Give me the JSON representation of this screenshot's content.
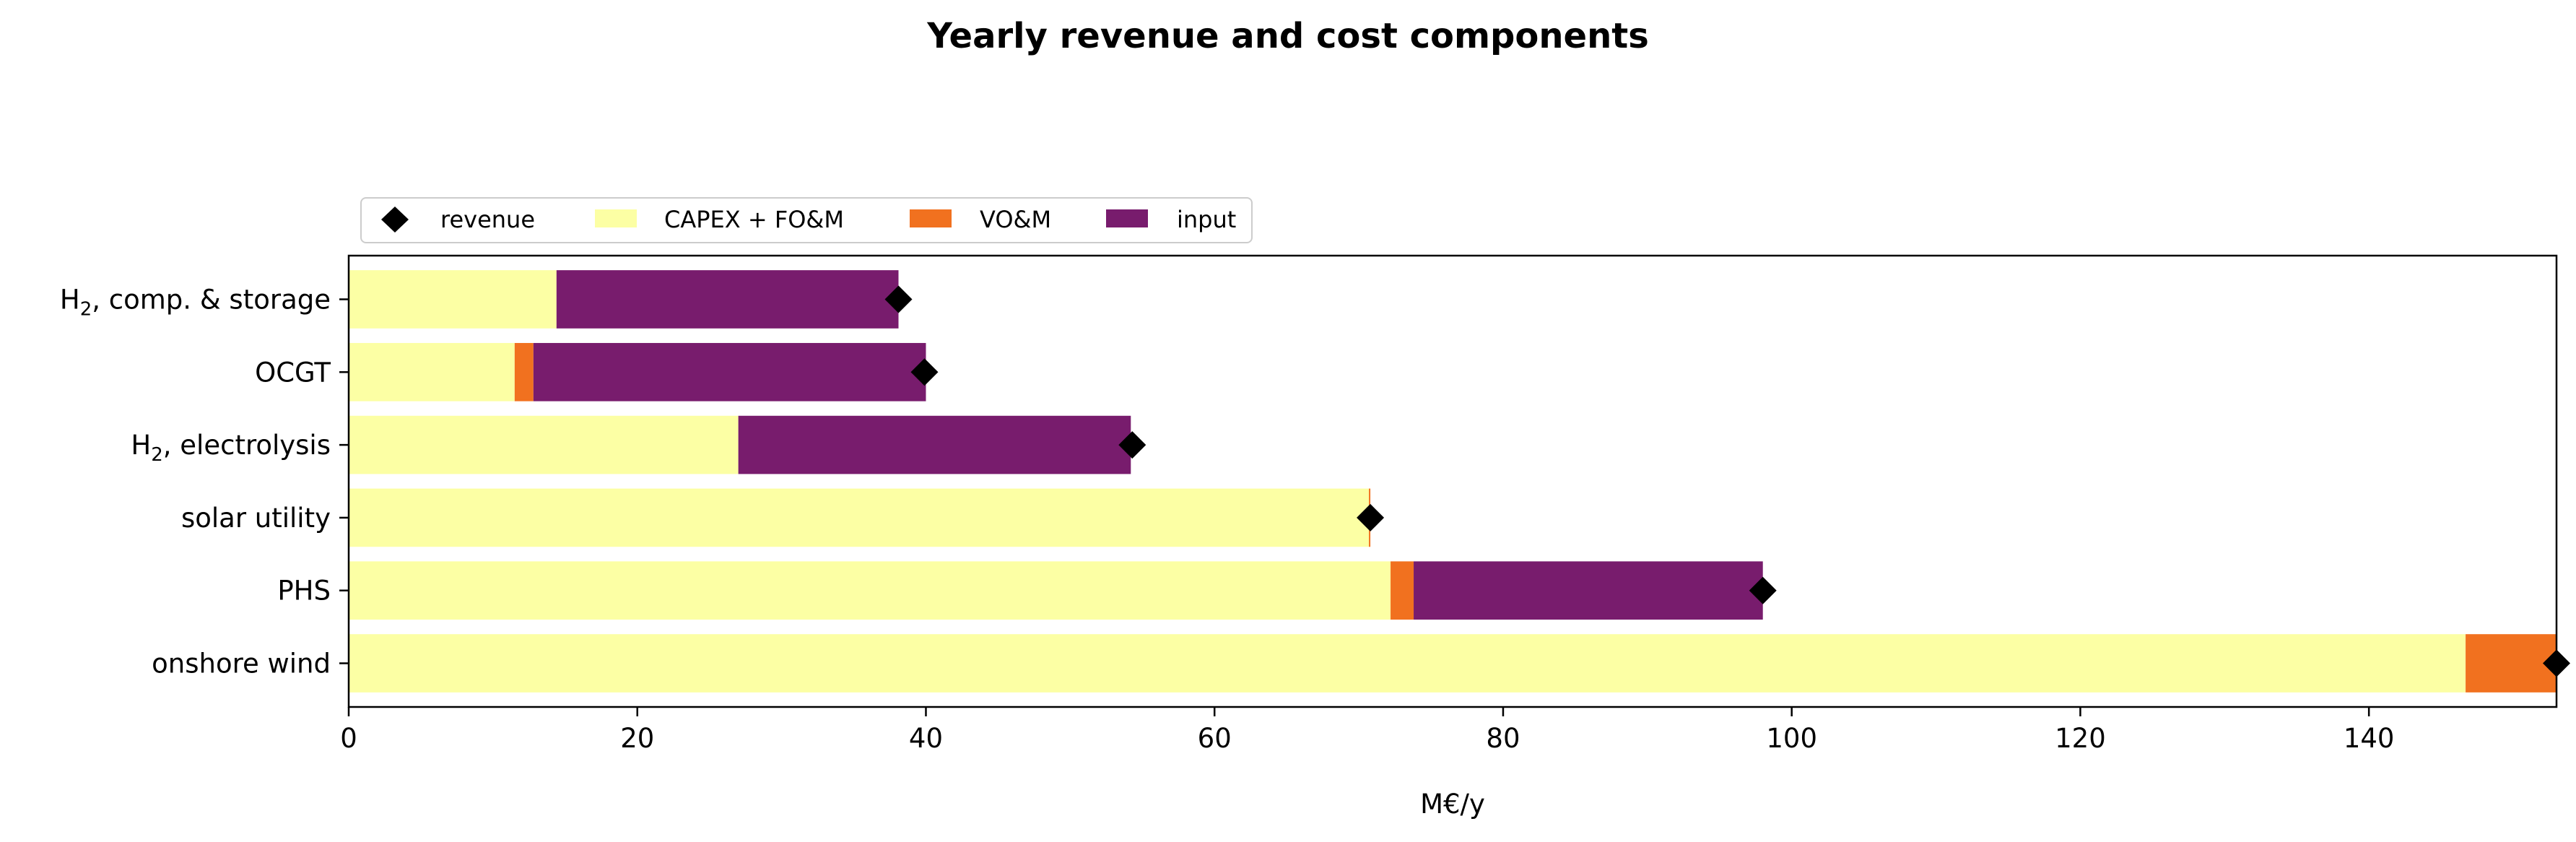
{
  "chart_data": {
    "type": "bar",
    "orientation": "horizontal",
    "stacked": true,
    "title": "Yearly revenue and cost components",
    "xlabel": "M€/y",
    "ylabel": "",
    "xlim": [
      0,
      153
    ],
    "xticks": [
      0,
      20,
      40,
      60,
      80,
      100,
      120,
      140
    ],
    "grid": false,
    "legend_placement": "top-left, above plot",
    "categories": [
      {
        "label": "H",
        "sub": "2",
        "rest": ", comp. & storage"
      },
      {
        "label": "OCGT",
        "sub": "",
        "rest": ""
      },
      {
        "label": "H",
        "sub": "2",
        "rest": ", electrolysis"
      },
      {
        "label": "solar utility",
        "sub": "",
        "rest": ""
      },
      {
        "label": "PHS",
        "sub": "",
        "rest": ""
      },
      {
        "label": "onshore wind",
        "sub": "",
        "rest": ""
      }
    ],
    "series": [
      {
        "name": "CAPEX + FO&M",
        "color": "#fcffa4",
        "values": [
          14.4,
          11.5,
          27.0,
          70.7,
          72.2,
          146.7
        ]
      },
      {
        "name": "VO&M",
        "color": "#f1711f",
        "values": [
          0.0,
          1.3,
          0.0,
          0.1,
          1.6,
          6.8
        ]
      },
      {
        "name": "input",
        "color": "#781c6d",
        "values": [
          23.7,
          27.2,
          27.2,
          0.0,
          24.2,
          0.0
        ]
      }
    ],
    "revenue": {
      "name": "revenue",
      "marker": "diamond",
      "color": "#000000",
      "values": [
        38.1,
        39.9,
        54.3,
        70.8,
        98.0,
        153.0
      ]
    }
  }
}
